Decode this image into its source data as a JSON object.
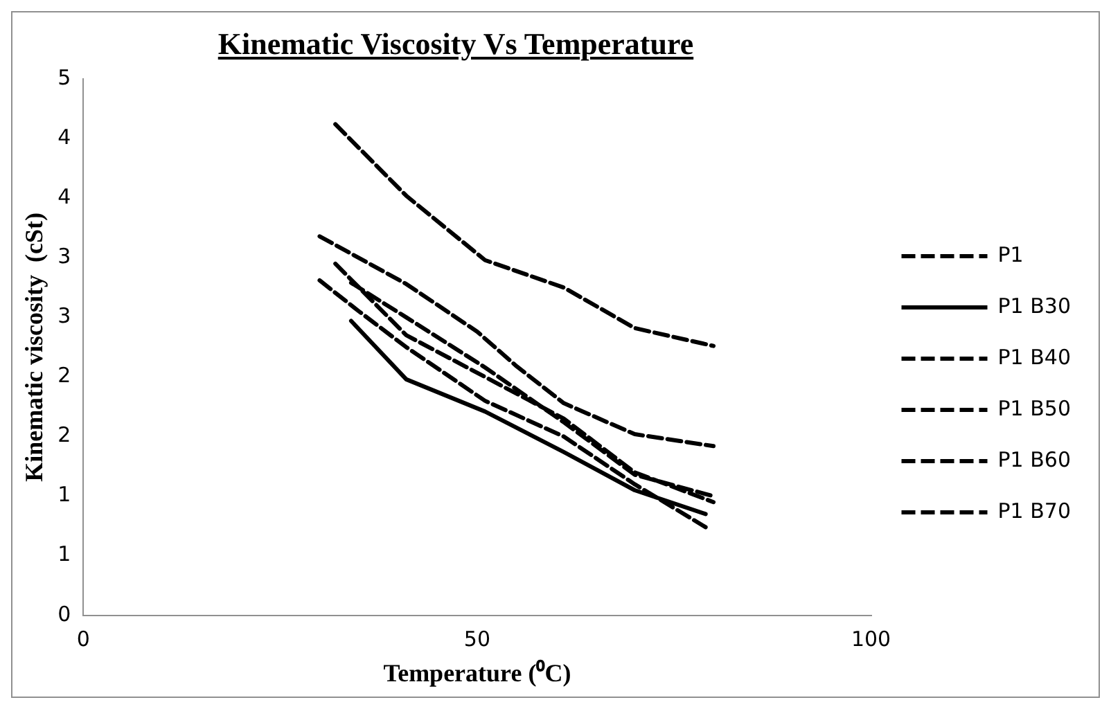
{
  "chart_data": {
    "type": "line",
    "title": "Kinematic Viscosity Vs Temperature",
    "xlabel": "Temperature (⁰C)",
    "ylabel": "Kinematic viscosity  (cSt)",
    "xlim": [
      0,
      100
    ],
    "xticks": [
      0,
      50,
      100
    ],
    "ylim": [
      0,
      4.5
    ],
    "yticks": [
      0,
      {
        "value": 0.5,
        "label": "1"
      },
      1,
      {
        "value": 1.5,
        "label": "2"
      },
      2,
      {
        "value": 2.5,
        "label": "3"
      },
      3,
      {
        "value": 3.5,
        "label": "4"
      },
      4,
      {
        "value": 4.5,
        "label": "5"
      }
    ],
    "grid": false,
    "legend": "right",
    "marker": "none",
    "series": [
      {
        "name": "P1",
        "color": "#000000",
        "line_style": "dashed",
        "x": [
          32,
          41,
          51,
          61,
          70,
          80
        ],
        "values": [
          4.12,
          3.52,
          2.98,
          2.75,
          2.41,
          2.26
        ]
      },
      {
        "name": "P1 B30",
        "color": "#000000",
        "line_style": "solid",
        "x": [
          34,
          41,
          51,
          61,
          70,
          79
        ],
        "values": [
          2.47,
          1.98,
          1.71,
          1.37,
          1.05,
          0.85
        ]
      },
      {
        "name": "P1 B40",
        "color": "#000000",
        "line_style": "dashed",
        "x": [
          34,
          41,
          51,
          61,
          70,
          80
        ],
        "values": [
          2.79,
          2.5,
          2.08,
          1.62,
          1.18,
          1.0
        ]
      },
      {
        "name": "P1 B50",
        "color": "#000000",
        "line_style": "dashed",
        "x": [
          30,
          35,
          41,
          51,
          61,
          70,
          79
        ],
        "values": [
          2.81,
          2.55,
          2.25,
          1.8,
          1.5,
          1.1,
          0.74
        ]
      },
      {
        "name": "P1 B60",
        "color": "#000000",
        "line_style": "dashed",
        "x": [
          32,
          41,
          51,
          61,
          70,
          80
        ],
        "values": [
          2.95,
          2.35,
          2.0,
          1.65,
          1.2,
          0.95
        ]
      },
      {
        "name": "P1 B70",
        "color": "#000000",
        "line_style": "dashed",
        "x": [
          30,
          41,
          50,
          55,
          61,
          70,
          80
        ],
        "values": [
          3.18,
          2.78,
          2.38,
          2.09,
          1.78,
          1.52,
          1.42
        ]
      }
    ]
  }
}
